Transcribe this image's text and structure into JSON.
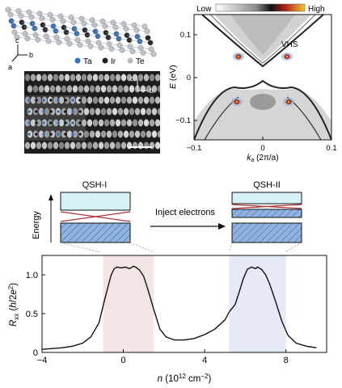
{
  "crystal": {
    "axes": {
      "c": "c",
      "b": "b",
      "a": "a"
    },
    "legend": [
      {
        "label": "Ta",
        "color": "#3a6fb0"
      },
      {
        "label": "Ir",
        "color": "#222222"
      },
      {
        "label": "Te",
        "color": "#b8b8b8"
      }
    ]
  },
  "stm": {
    "axis_c": "c",
    "axis_b": "b"
  },
  "band": {
    "colorbar": {
      "low": "Low",
      "high": "High"
    },
    "ylabel_var": "E",
    "ylabel_unit": " (eV)",
    "xlabel_var": "k",
    "xlabel_sub": "a",
    "xlabel_unit": " (2π/a)",
    "yticks": [
      "0.1",
      "0",
      "−0.1"
    ],
    "xticks": [
      "−0.1",
      "0",
      "0.1"
    ],
    "annotation": "VHS"
  },
  "schematic": {
    "left_title": "QSH-I",
    "right_title": "QSH-II",
    "arrow_label": "Inject electrons",
    "energy_label": "Energy"
  },
  "chart_data": {
    "type": "line",
    "xlabel": "n (10¹² cm⁻²)",
    "ylabel": "Rxx (h/2e²)",
    "xlim": [
      -4,
      10
    ],
    "ylim": [
      0,
      1.25
    ],
    "xticks": [
      "−4",
      "0",
      "4",
      "8"
    ],
    "yticks": [
      "0",
      "0.5",
      "1.0"
    ],
    "x": [
      -4,
      -3,
      -2.5,
      -2,
      -1.6,
      -1.2,
      -0.9,
      -0.6,
      -0.45,
      -0.3,
      -0.1,
      0.1,
      0.3,
      0.5,
      0.6,
      0.8,
      1.0,
      1.2,
      1.5,
      1.8,
      2.1,
      2.5,
      3,
      3.5,
      4,
      4.5,
      5,
      5.2,
      5.5,
      5.7,
      5.9,
      6.1,
      6.3,
      6.5,
      6.6,
      6.8,
      7.0,
      7.2,
      7.5,
      7.8,
      8.1,
      8.5,
      9,
      9.5
    ],
    "y": [
      0.04,
      0.06,
      0.08,
      0.12,
      0.2,
      0.38,
      0.7,
      1.0,
      1.08,
      1.1,
      1.09,
      1.1,
      1.08,
      1.11,
      1.1,
      1.06,
      0.98,
      0.82,
      0.55,
      0.3,
      0.2,
      0.16,
      0.16,
      0.18,
      0.23,
      0.3,
      0.42,
      0.52,
      0.62,
      0.78,
      0.95,
      1.07,
      1.1,
      1.08,
      1.1,
      1.07,
      1.0,
      0.88,
      0.65,
      0.4,
      0.22,
      0.12,
      0.08,
      0.06
    ],
    "shaded_regions": [
      {
        "x0": -1.0,
        "x1": 1.5,
        "color": "#f3e4e6"
      },
      {
        "x0": 5.2,
        "x1": 8.0,
        "color": "#e5e9f8"
      }
    ]
  }
}
